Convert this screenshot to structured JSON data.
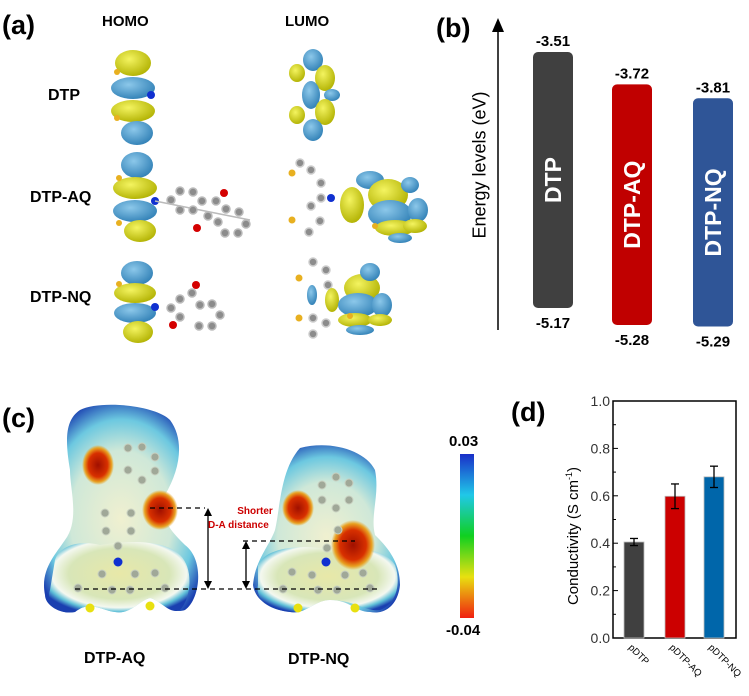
{
  "panel_a": {
    "label": "(a)",
    "col_headers": [
      "HOMO",
      "LUMO"
    ],
    "row_labels": [
      "DTP",
      "DTP-AQ",
      "DTP-NQ"
    ],
    "colors": {
      "lobe_blue": "#4a9ccc",
      "lobe_yellow": "#d8d80c",
      "atom_gray": "#8c8c8c",
      "atom_red": "#d40000",
      "atom_blue": "#1030d0",
      "atom_sulfur": "#e8b020"
    }
  },
  "panel_b": {
    "label": "(b)",
    "ylabel": "Energy levels (eV)"
  },
  "panel_c": {
    "label": "(c)",
    "molecules": [
      "DTP-AQ",
      "DTP-NQ"
    ],
    "annotation_line1": "Shorter",
    "annotation_line2": "D-A distance",
    "annotation_color": "#cc0000",
    "colorbar_max": "0.03",
    "colorbar_min": "-0.04"
  },
  "panel_d": {
    "label": "(d)"
  },
  "chart_data": [
    {
      "type": "bar",
      "title": "",
      "ylabel": "Energy levels (eV)",
      "categories": [
        "DTP",
        "DTP-AQ",
        "DTP-NQ"
      ],
      "series": [
        {
          "name": "LUMO",
          "values": [
            -3.51,
            -3.72,
            -3.81
          ],
          "labels": [
            "-3.51",
            "-3.72",
            "-3.81"
          ]
        },
        {
          "name": "HOMO",
          "values": [
            -5.17,
            -5.28,
            -5.29
          ],
          "labels": [
            "-5.17",
            "-5.28",
            "-5.29"
          ]
        }
      ],
      "colors": [
        "#404040",
        "#c00000",
        "#2f5597"
      ]
    },
    {
      "type": "bar",
      "title": "",
      "xlabel": "",
      "ylabel": "Conductivity (S cm",
      "ylabel_sup": "-1",
      "ylabel_end": ")",
      "categories": [
        "pDTP",
        "pDTP-AQ",
        "pDTP-NQ"
      ],
      "values": [
        0.405,
        0.598,
        0.68
      ],
      "errors": [
        0.015,
        0.052,
        0.045
      ],
      "ylim": [
        0.0,
        1.0
      ],
      "yticks": [
        "0.0",
        "0.2",
        "0.4",
        "0.6",
        "0.8",
        "1.0"
      ],
      "colors": [
        "#404040",
        "#cc0000",
        "#0066aa"
      ]
    }
  ]
}
